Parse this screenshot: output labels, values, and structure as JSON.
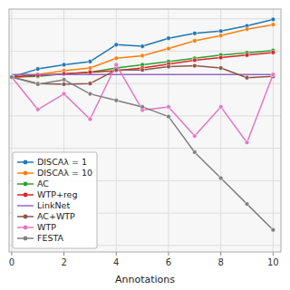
{
  "chart_data": {
    "type": "line",
    "xlabel": "Annotations",
    "x": [
      0,
      1,
      2,
      3,
      4,
      5,
      6,
      7,
      8,
      9,
      10
    ],
    "series": [
      {
        "name": "DISCAλ = 1",
        "color": "#1f77b4",
        "marker": "circle",
        "values": [
          0.72,
          0.745,
          0.758,
          0.768,
          0.82,
          0.815,
          0.84,
          0.855,
          0.862,
          0.878,
          0.898
        ]
      },
      {
        "name": "DISCAλ = 10",
        "color": "#ff7f0e",
        "marker": "circle",
        "values": [
          0.72,
          0.728,
          0.74,
          0.748,
          0.778,
          0.786,
          0.808,
          0.832,
          0.848,
          0.868,
          0.882
        ]
      },
      {
        "name": "AC",
        "color": "#2ca02c",
        "marker": "circle",
        "values": [
          0.72,
          0.722,
          0.73,
          0.735,
          0.748,
          0.758,
          0.768,
          0.778,
          0.788,
          0.795,
          0.802
        ]
      },
      {
        "name": "WTP+reg",
        "color": "#d62728",
        "marker": "circle",
        "values": [
          0.72,
          0.725,
          0.73,
          0.735,
          0.74,
          0.748,
          0.76,
          0.772,
          0.78,
          0.788,
          0.796
        ]
      },
      {
        "name": "LinkNet",
        "color": "#9467bd",
        "values": [
          0.728,
          0.728,
          0.728,
          0.728,
          0.728,
          0.728,
          0.728,
          0.728,
          0.728,
          0.728,
          0.728
        ]
      },
      {
        "name": "AC+WTP",
        "color": "#8c564b",
        "marker": "circle",
        "values": [
          0.72,
          0.7,
          0.698,
          0.7,
          0.742,
          0.742,
          0.752,
          0.755,
          0.748,
          0.718,
          0.722
        ]
      },
      {
        "name": "WTP",
        "color": "#e377c2",
        "marker": "circle",
        "values": [
          0.72,
          0.62,
          0.668,
          0.59,
          0.758,
          0.618,
          0.628,
          0.538,
          0.628,
          0.518,
          0.728
        ]
      },
      {
        "name": "FESTA",
        "color": "#7f7f7f",
        "marker": "circle",
        "values": [
          0.72,
          0.698,
          0.712,
          0.668,
          0.648,
          0.628,
          0.598,
          0.488,
          0.408,
          0.328,
          0.248
        ]
      }
    ],
    "xlim": [
      -0.1,
      10.3
    ],
    "ylim": [
      0.18,
      0.93
    ],
    "xticks": [
      0,
      2,
      4,
      6,
      8,
      10
    ],
    "yticks": [
      0.2,
      0.3,
      0.4,
      0.5,
      0.6,
      0.7,
      0.8,
      0.9
    ],
    "tick_labels": "x",
    "grid": true,
    "legend": "lower left"
  }
}
